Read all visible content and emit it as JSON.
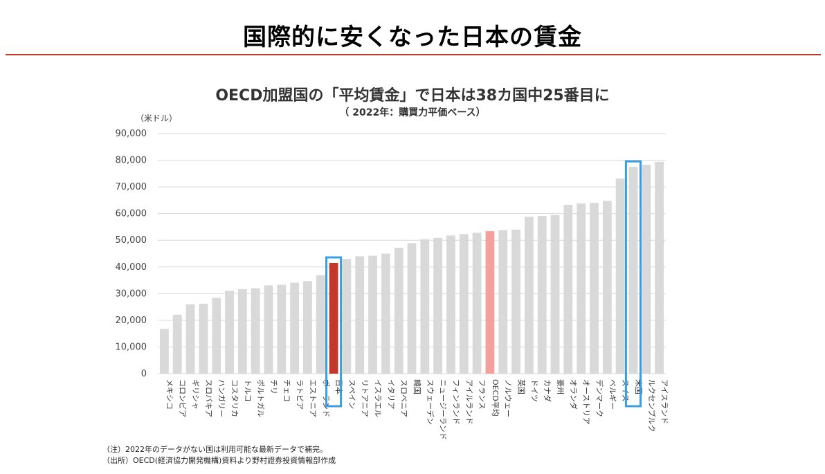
{
  "slide": {
    "title": "国際的に安くなった日本の賃金"
  },
  "chart_data": {
    "type": "bar",
    "title": "OECD加盟国の「平均賃金」で日本は38カ国中25番目に",
    "subtitle": "（ 2022年：購買力平価ベース）",
    "unit": "（米ドル）",
    "ylim": [
      0,
      90000
    ],
    "yticks": [
      "0",
      "10,000",
      "20,000",
      "30,000",
      "40,000",
      "50,000",
      "60,000",
      "70,000",
      "80,000",
      "90,000"
    ],
    "grid": true,
    "categories": [
      "メキシコ",
      "コロンビア",
      "ギリシャ",
      "スロバキア",
      "ハンガリー",
      "コスタリカ",
      "トルコ",
      "ポルトガル",
      "チリ",
      "チェコ",
      "ラトビア",
      "エストニア",
      "ポーランド",
      "日本",
      "スペイン",
      "リトアニア",
      "イスラエル",
      "イタリア",
      "スロベニア",
      "韓国",
      "スウェーデン",
      "ニュージーランド",
      "フィンランド",
      "アイルランド",
      "フランス",
      "OECD平均",
      "ノルウェー",
      "英国",
      "ドイツ",
      "カナダ",
      "豪州",
      "オランダ",
      "オーストリア",
      "デンマーク",
      "ベルギー",
      "スイス",
      "米国",
      "ルクセンブルク",
      "アイスランド"
    ],
    "values": [
      16800,
      22100,
      26000,
      26200,
      28400,
      31100,
      31700,
      32000,
      33100,
      33300,
      34100,
      34700,
      36900,
      41500,
      43000,
      44000,
      44200,
      45000,
      47200,
      48900,
      50400,
      50900,
      51800,
      52300,
      52800,
      53400,
      53800,
      54000,
      58800,
      59100,
      59400,
      63300,
      63800,
      64000,
      64800,
      73100,
      77500,
      78300,
      79400
    ],
    "colors": {
      "default": "#d9d9d9",
      "japan": "#c0392b",
      "oecd_average": "#f4a09c",
      "highlight_box": "#3a9ee0",
      "grid": "#d9d9d9"
    },
    "highlighted_boxes": [
      "日本",
      "米国"
    ]
  },
  "notes": {
    "line1": "（注）2022年のデータがない国は利用可能な最新データで補完。",
    "line2": "（出所）OECD(経済協力開発機構)資料より野村證券投資情報部作成"
  }
}
